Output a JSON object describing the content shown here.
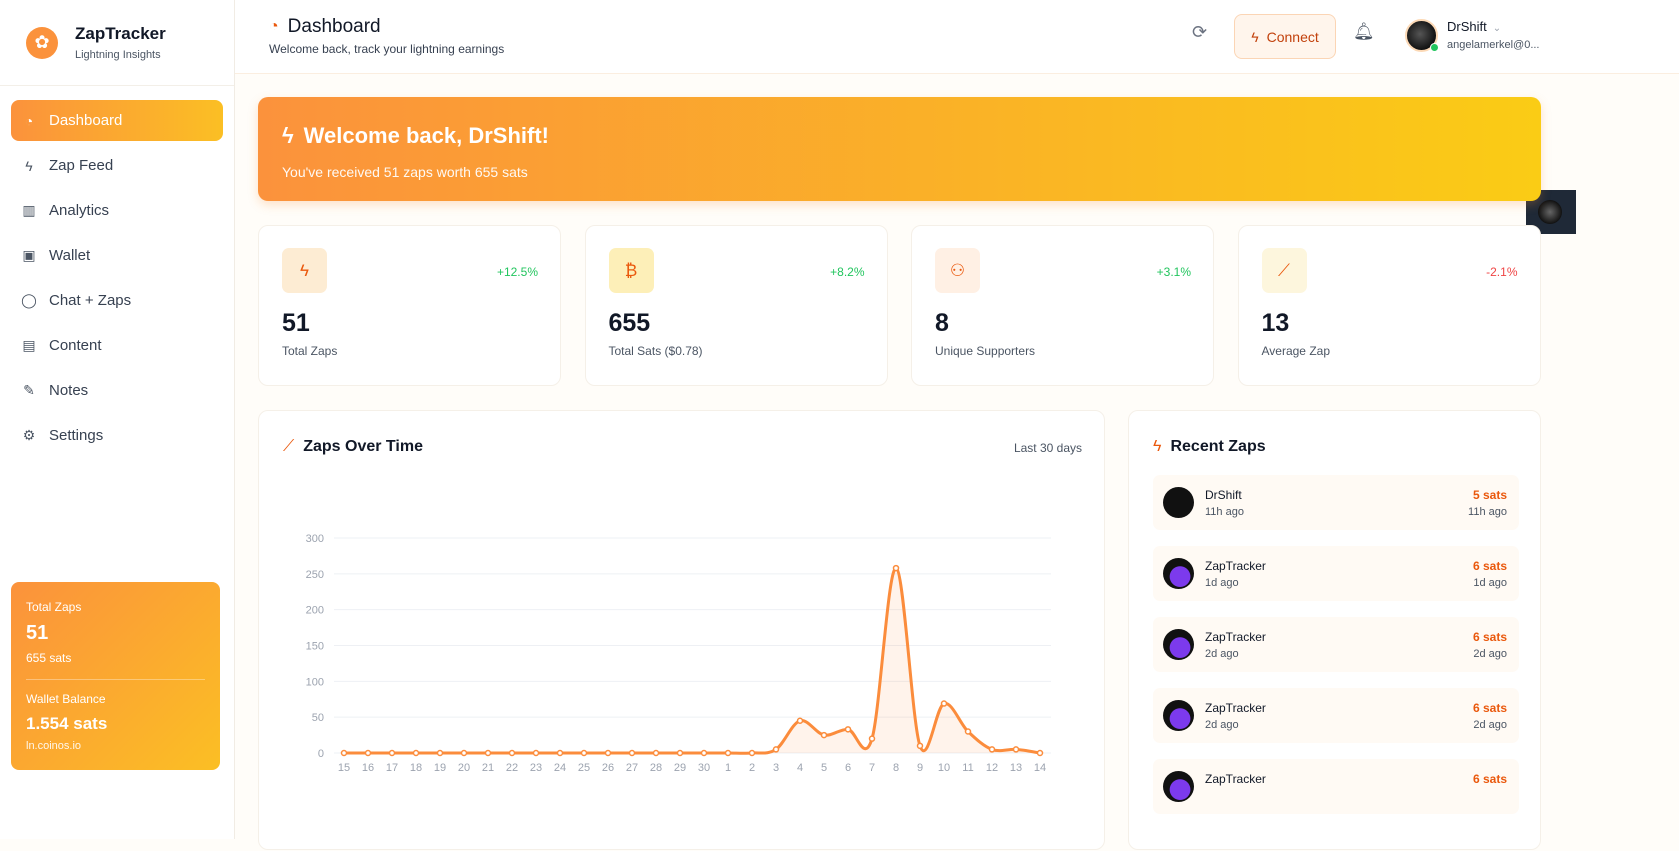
{
  "brand": {
    "title": "ZapTracker",
    "subtitle": "Lightning Insights"
  },
  "nav": [
    {
      "label": "Dashboard",
      "icon": "gauge-icon"
    },
    {
      "label": "Zap Feed",
      "icon": "bolt-icon"
    },
    {
      "label": "Analytics",
      "icon": "bar-chart-icon"
    },
    {
      "label": "Wallet",
      "icon": "wallet-icon"
    },
    {
      "label": "Chat + Zaps",
      "icon": "chat-icon"
    },
    {
      "label": "Content",
      "icon": "document-icon"
    },
    {
      "label": "Notes",
      "icon": "edit-icon"
    },
    {
      "label": "Settings",
      "icon": "gear-icon"
    }
  ],
  "sidebar_card": {
    "total_label": "Total Zaps",
    "total": "51",
    "sats": "655 sats",
    "wallet_label": "Wallet Balance",
    "wallet": "1.554 sats",
    "provider": "ln.coinos.io"
  },
  "header": {
    "title": "Dashboard",
    "subtitle": "Welcome back, track your lightning earnings",
    "connect": "Connect",
    "user": "DrShift",
    "email": "angelamerkel@0..."
  },
  "welcome": {
    "title": "Welcome back, DrShift!",
    "subtitle": "You've received 51 zaps worth 655 sats"
  },
  "stats": [
    {
      "value": "51",
      "label": "Total Zaps",
      "change": "+12.5%",
      "icon": "bolt-icon",
      "positive": true
    },
    {
      "value": "655",
      "label": "Total Sats ($0.78)",
      "change": "+8.2%",
      "icon": "bitcoin-icon",
      "positive": true
    },
    {
      "value": "8",
      "label": "Unique Supporters",
      "change": "+3.1%",
      "icon": "users-icon",
      "positive": true
    },
    {
      "value": "13",
      "label": "Average Zap",
      "change": "-2.1%",
      "icon": "trend-icon",
      "positive": false
    }
  ],
  "chart": {
    "title": "Zaps Over Time",
    "range": "Last 30 days"
  },
  "chart_data": {
    "type": "area",
    "x": [
      "15",
      "16",
      "17",
      "18",
      "19",
      "20",
      "21",
      "22",
      "23",
      "24",
      "25",
      "26",
      "27",
      "28",
      "29",
      "30",
      "1",
      "2",
      "3",
      "4",
      "5",
      "6",
      "7",
      "8",
      "9",
      "10",
      "11",
      "12",
      "13",
      "14"
    ],
    "series": [
      {
        "values": [
          0,
          0,
          0,
          0,
          0,
          0,
          0,
          0,
          0,
          0,
          0,
          0,
          0,
          0,
          0,
          0,
          0,
          0,
          5,
          45,
          25,
          33,
          20,
          258,
          10,
          69,
          30,
          5,
          5,
          0
        ]
      }
    ],
    "ylim": [
      0,
      300
    ],
    "yticks": [
      0,
      50,
      100,
      150,
      200,
      250,
      300
    ],
    "grid": true,
    "color": "#fb8c3c"
  },
  "recent": {
    "title": "Recent Zaps",
    "items": [
      {
        "name": "DrShift",
        "time": "11h ago",
        "amount": "5 sats"
      },
      {
        "name": "ZapTracker",
        "time": "1d ago",
        "amount": "6 sats"
      },
      {
        "name": "ZapTracker",
        "time": "2d ago",
        "amount": "6 sats"
      },
      {
        "name": "ZapTracker",
        "time": "2d ago",
        "amount": "6 sats"
      },
      {
        "name": "ZapTracker",
        "time": "",
        "amount": "6 sats"
      }
    ]
  }
}
